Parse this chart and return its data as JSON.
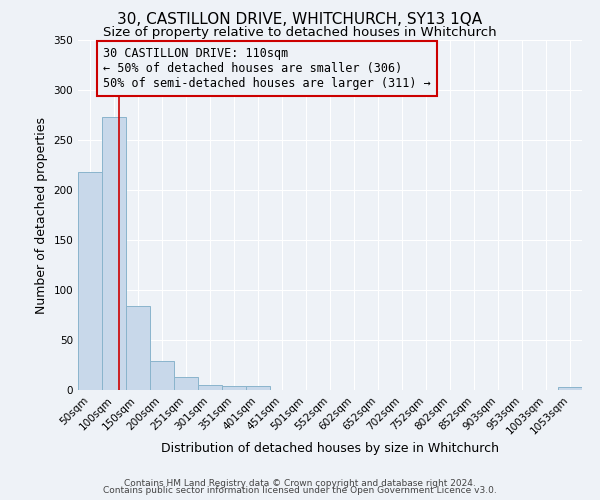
{
  "title": "30, CASTILLON DRIVE, WHITCHURCH, SY13 1QA",
  "subtitle": "Size of property relative to detached houses in Whitchurch",
  "xlabel": "Distribution of detached houses by size in Whitchurch",
  "ylabel": "Number of detached properties",
  "bar_labels": [
    "50sqm",
    "100sqm",
    "150sqm",
    "200sqm",
    "251sqm",
    "301sqm",
    "351sqm",
    "401sqm",
    "451sqm",
    "501sqm",
    "552sqm",
    "602sqm",
    "652sqm",
    "702sqm",
    "752sqm",
    "802sqm",
    "852sqm",
    "903sqm",
    "953sqm",
    "1003sqm",
    "1053sqm"
  ],
  "bar_values": [
    218,
    273,
    84,
    29,
    13,
    5,
    4,
    4,
    0,
    0,
    0,
    0,
    0,
    0,
    0,
    0,
    0,
    0,
    0,
    0,
    3
  ],
  "bar_color": "#c8d8ea",
  "bar_edge_color": "#8ab4cc",
  "ylim": [
    0,
    350
  ],
  "yticks": [
    0,
    50,
    100,
    150,
    200,
    250,
    300,
    350
  ],
  "property_line_x": 1.2,
  "property_line_color": "#cc0000",
  "annotation_box_text": "30 CASTILLON DRIVE: 110sqm\n← 50% of detached houses are smaller (306)\n50% of semi-detached houses are larger (311) →",
  "annotation_box_color": "#cc0000",
  "footer_line1": "Contains HM Land Registry data © Crown copyright and database right 2024.",
  "footer_line2": "Contains public sector information licensed under the Open Government Licence v3.0.",
  "background_color": "#eef2f7",
  "grid_color": "#ffffff",
  "title_fontsize": 11,
  "subtitle_fontsize": 9.5,
  "axis_label_fontsize": 9,
  "tick_fontsize": 7.5,
  "annotation_fontsize": 8.5,
  "footer_fontsize": 6.5
}
